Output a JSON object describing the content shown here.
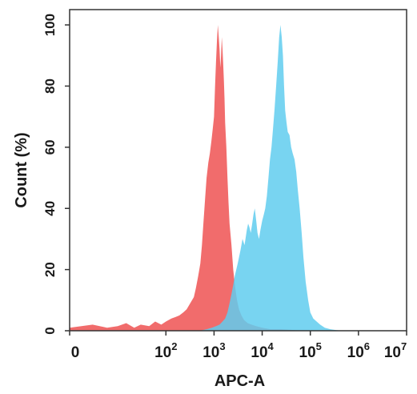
{
  "chart_data": {
    "type": "area",
    "title": "",
    "xlabel": "APC-A",
    "ylabel": "Count  (%)",
    "x_scale": "log",
    "xlim": [
      1,
      10000000
    ],
    "ylim": [
      0,
      105
    ],
    "grid": false,
    "legend": "none",
    "x_tick_labels": [
      {
        "value": 1,
        "base": "0",
        "exp": ""
      },
      {
        "value": 100,
        "base": "10",
        "exp": "2"
      },
      {
        "value": 1000,
        "base": "10",
        "exp": "3"
      },
      {
        "value": 10000,
        "base": "10",
        "exp": "4"
      },
      {
        "value": 100000,
        "base": "10",
        "exp": "5"
      },
      {
        "value": 1000000,
        "base": "10",
        "exp": "6"
      },
      {
        "value": 10000000,
        "base": "10",
        "exp": "7"
      }
    ],
    "y_ticks": [
      0,
      20,
      40,
      60,
      80,
      100
    ],
    "y_tick_labels": [
      "0",
      "20",
      "40",
      "60",
      "80",
      "100"
    ],
    "series": [
      {
        "color": "#f06464",
        "x": [
          1,
          3,
          6,
          10,
          15,
          22,
          30,
          45,
          60,
          80,
          100,
          130,
          160,
          190,
          230,
          270,
          320,
          380,
          420,
          470,
          520,
          560,
          600,
          650,
          700,
          760,
          820,
          880,
          940,
          1000,
          1050,
          1100,
          1150,
          1200,
          1250,
          1300,
          1350,
          1400,
          1450,
          1500,
          1550,
          1600,
          1650,
          1700,
          1800,
          1900,
          2000,
          2100,
          2300,
          2500,
          2700,
          3000,
          3300,
          3700,
          4200,
          5000,
          6000,
          7500,
          10000,
          15000,
          25000,
          50000,
          100000,
          200000
        ],
        "y": [
          1,
          2,
          1,
          1.5,
          2.5,
          1,
          2,
          1.5,
          3,
          2,
          3,
          4,
          4.5,
          5,
          6,
          7,
          9,
          11,
          14,
          18,
          22,
          28,
          35,
          43,
          50,
          55,
          58,
          62,
          66,
          70,
          80,
          88,
          95,
          100,
          96,
          92,
          86,
          90,
          96,
          92,
          87,
          82,
          76,
          68,
          60,
          50,
          42,
          35,
          28,
          20,
          15,
          10,
          7,
          5,
          3.5,
          2.5,
          2,
          1.5,
          1,
          0.5,
          0.5,
          0.2,
          0.1,
          0
        ]
      },
      {
        "color": "#60ccee",
        "x": [
          1,
          10,
          50,
          150,
          300,
          500,
          700,
          900,
          1100,
          1300,
          1500,
          1700,
          1900,
          2100,
          2300,
          2500,
          2700,
          2900,
          3100,
          3300,
          3500,
          3700,
          3900,
          4100,
          4300,
          4500,
          4800,
          5100,
          5400,
          5800,
          6200,
          6600,
          7000,
          7500,
          8000,
          8600,
          9200,
          10000,
          10800,
          11600,
          12500,
          13500,
          14500,
          15600,
          16800,
          18000,
          19500,
          21000,
          22500,
          24000,
          25500,
          27000,
          28500,
          30000,
          32000,
          34000,
          37000,
          40000,
          43000,
          47000,
          51000,
          55000,
          60000,
          66000,
          72000,
          80000,
          90000,
          100000,
          115000,
          135000,
          160000,
          200000,
          260000,
          350000,
          500000
        ],
        "y": [
          0,
          0,
          0,
          0,
          0,
          0,
          0.5,
          1,
          1.5,
          2,
          3,
          4,
          6,
          9,
          12,
          15,
          18,
          20,
          22,
          24,
          26,
          28,
          30,
          29,
          28,
          30,
          33,
          35,
          34,
          32,
          35,
          38,
          40,
          36,
          32,
          30,
          33,
          36,
          38,
          40,
          44,
          50,
          56,
          60,
          66,
          72,
          80,
          88,
          96,
          100,
          96,
          90,
          80,
          72,
          68,
          65,
          64,
          60,
          58,
          56,
          52,
          46,
          40,
          32,
          24,
          16,
          10,
          6,
          4,
          3,
          2,
          1,
          0.5,
          0.2,
          0
        ]
      }
    ]
  }
}
